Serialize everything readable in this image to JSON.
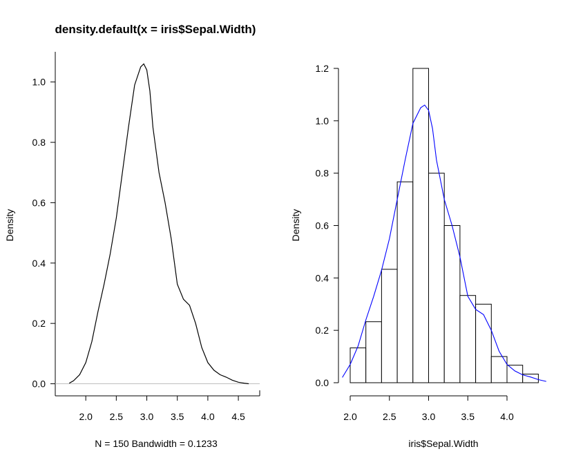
{
  "chart_data": [
    {
      "type": "line",
      "title": "density.default(x = iris$Sepal.Width)",
      "xlabel": "N = 150   Bandwidth = 0.1233",
      "ylabel": "Density",
      "xlim": [
        1.5,
        4.85
      ],
      "ylim": [
        -0.04,
        1.1
      ],
      "xticks": [
        "2.0",
        "2.5",
        "3.0",
        "3.5",
        "4.0",
        "4.5"
      ],
      "yticks": [
        "0.0",
        "0.2",
        "0.4",
        "0.6",
        "0.8",
        "1.0"
      ],
      "baseline": 0,
      "line_color": "#000000",
      "baseline_color": "#bebebe",
      "series": [
        {
          "x": [
            1.73,
            1.8,
            1.9,
            2.0,
            2.1,
            2.2,
            2.3,
            2.4,
            2.5,
            2.6,
            2.7,
            2.8,
            2.9,
            2.95,
            3.0,
            3.05,
            3.1,
            3.2,
            3.3,
            3.4,
            3.5,
            3.6,
            3.7,
            3.8,
            3.9,
            4.0,
            4.1,
            4.2,
            4.3,
            4.4,
            4.5,
            4.6,
            4.67
          ],
          "y": [
            0.002,
            0.01,
            0.03,
            0.07,
            0.14,
            0.24,
            0.33,
            0.43,
            0.55,
            0.7,
            0.85,
            0.99,
            1.05,
            1.06,
            1.04,
            0.97,
            0.85,
            0.7,
            0.6,
            0.48,
            0.33,
            0.28,
            0.26,
            0.2,
            0.12,
            0.07,
            0.045,
            0.03,
            0.022,
            0.012,
            0.005,
            0.002,
            0.0
          ]
        }
      ]
    },
    {
      "type": "bar",
      "title": "",
      "xlabel": "iris$Sepal.Width",
      "ylabel": "Density",
      "xlim": [
        1.9,
        4.5
      ],
      "ylim": [
        -0.04,
        1.25
      ],
      "xticks": [
        "2.0",
        "2.5",
        "3.0",
        "3.5",
        "4.0"
      ],
      "yticks": [
        "0.0",
        "0.2",
        "0.4",
        "0.6",
        "0.8",
        "1.0",
        "1.2"
      ],
      "line_color": "#0000ff",
      "bins": [
        {
          "start": 2.0,
          "end": 2.2,
          "value": 0.133
        },
        {
          "start": 2.2,
          "end": 2.4,
          "value": 0.233
        },
        {
          "start": 2.4,
          "end": 2.6,
          "value": 0.433
        },
        {
          "start": 2.6,
          "end": 2.8,
          "value": 0.767
        },
        {
          "start": 2.8,
          "end": 3.0,
          "value": 1.2
        },
        {
          "start": 3.0,
          "end": 3.2,
          "value": 0.8
        },
        {
          "start": 3.2,
          "end": 3.4,
          "value": 0.6
        },
        {
          "start": 3.4,
          "end": 3.6,
          "value": 0.333
        },
        {
          "start": 3.6,
          "end": 3.8,
          "value": 0.3
        },
        {
          "start": 3.8,
          "end": 4.0,
          "value": 0.1
        },
        {
          "start": 4.0,
          "end": 4.2,
          "value": 0.067
        },
        {
          "start": 4.2,
          "end": 4.4,
          "value": 0.033
        }
      ],
      "density_curve": {
        "x": [
          1.9,
          2.0,
          2.1,
          2.2,
          2.3,
          2.4,
          2.5,
          2.6,
          2.7,
          2.8,
          2.9,
          2.95,
          3.0,
          3.05,
          3.1,
          3.2,
          3.3,
          3.4,
          3.5,
          3.6,
          3.7,
          3.8,
          3.9,
          4.0,
          4.1,
          4.2,
          4.3,
          4.4,
          4.5
        ],
        "y": [
          0.02,
          0.07,
          0.14,
          0.24,
          0.33,
          0.43,
          0.55,
          0.7,
          0.85,
          0.99,
          1.05,
          1.06,
          1.04,
          0.97,
          0.85,
          0.7,
          0.6,
          0.48,
          0.33,
          0.28,
          0.26,
          0.2,
          0.12,
          0.07,
          0.045,
          0.03,
          0.022,
          0.012,
          0.005
        ]
      }
    }
  ]
}
